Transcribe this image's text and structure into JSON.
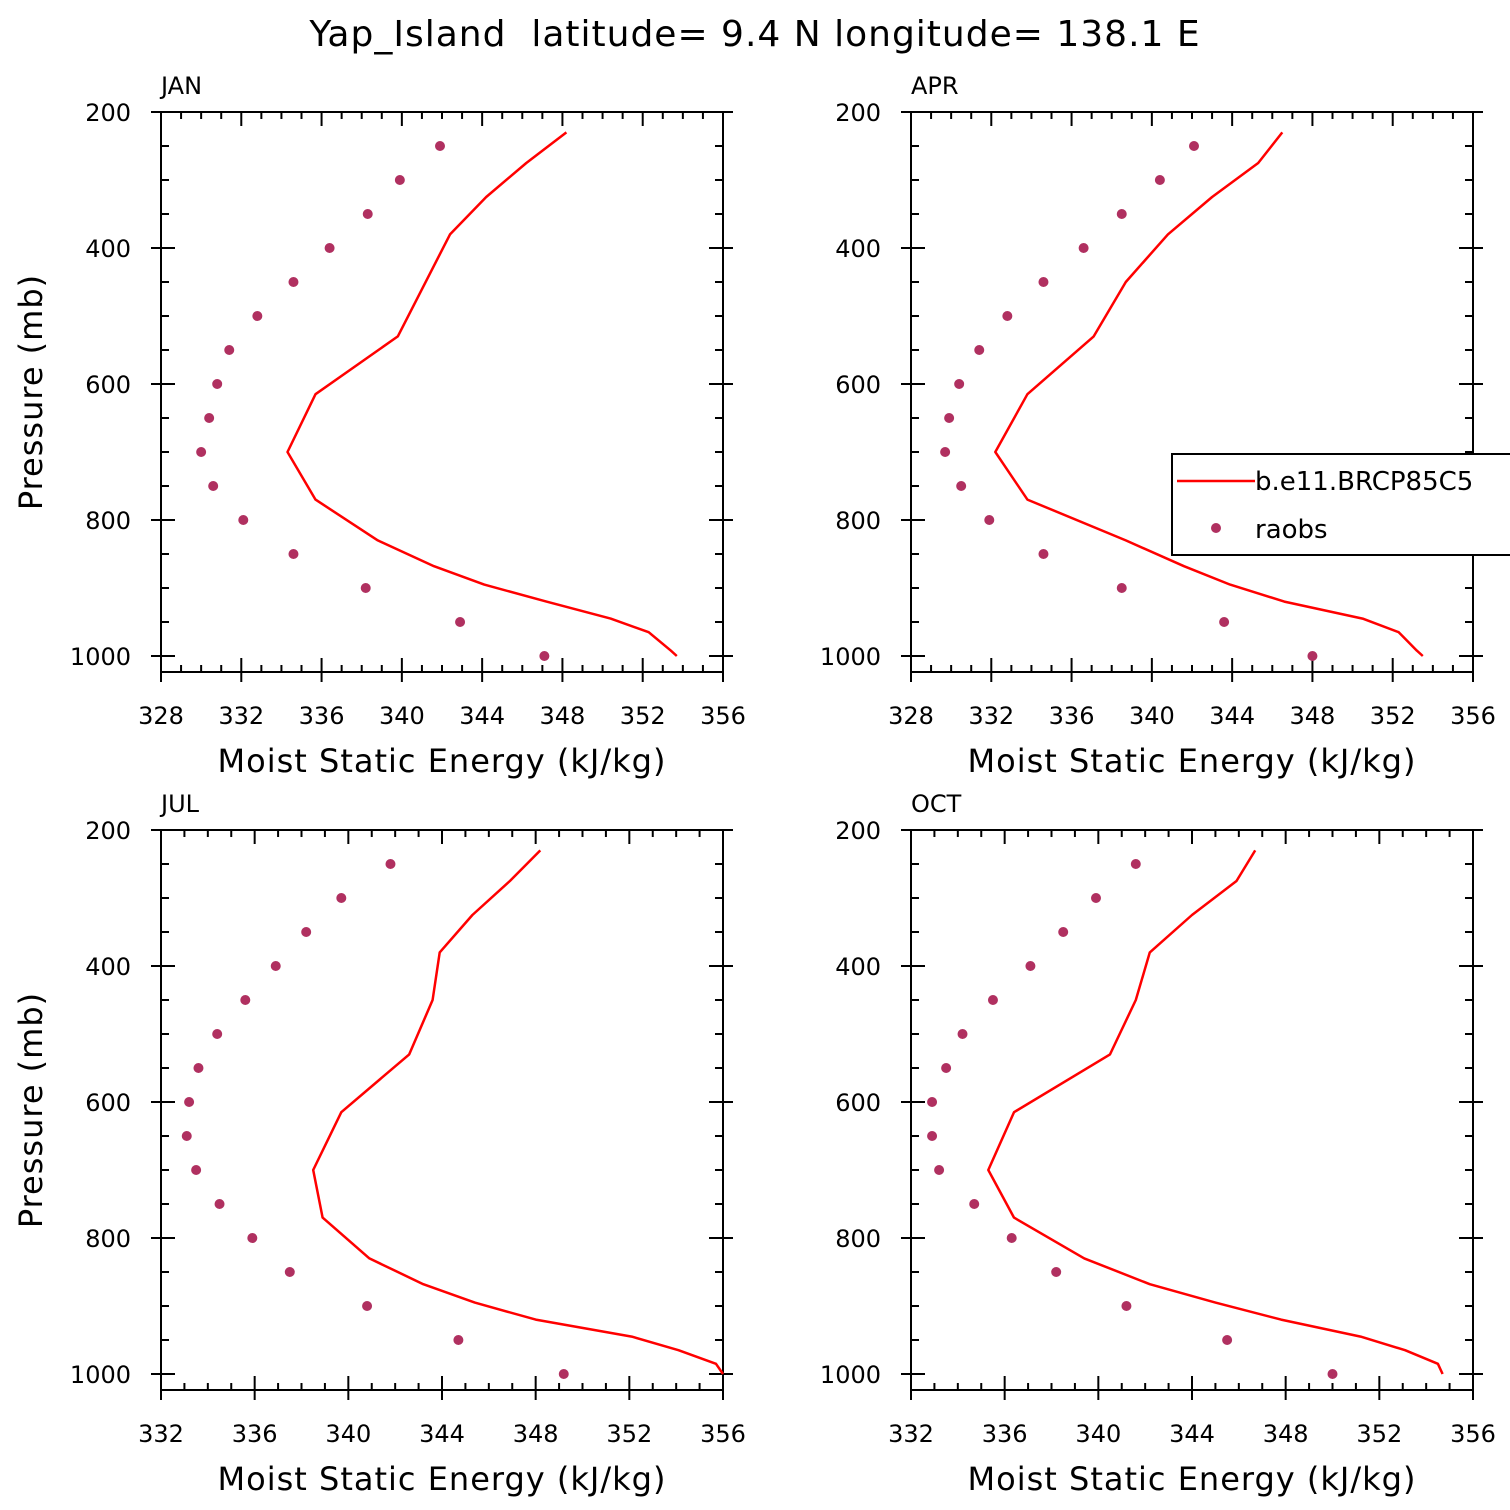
{
  "figure": {
    "title": "Yap_Island  latitude= 9.4 N longitude= 138.1 E"
  },
  "colors": {
    "model_line": "#ff0000",
    "raobs_marker": "#b03060",
    "axes": "#000000"
  },
  "legend": {
    "placement": "right-middle of APR panel",
    "entries": [
      {
        "label": "b.e11.BRCP85C5",
        "style": "line",
        "color": "#ff0000"
      },
      {
        "label": "raobs",
        "style": "marker",
        "color": "#b03060"
      }
    ]
  },
  "chart_data": [
    {
      "type": "line",
      "panel_label": "JAN",
      "xlabel": "Moist Static Energy (kJ/kg)",
      "ylabel": "Pressure (mb)",
      "xlim": [
        328,
        356
      ],
      "ylim": [
        1000,
        200
      ],
      "x_ticks": [
        328,
        332,
        336,
        340,
        344,
        348,
        352,
        356
      ],
      "y_ticks": [
        200,
        400,
        600,
        800,
        1000
      ],
      "series": [
        {
          "name": "b.e11.BRCP85C5",
          "style": "line",
          "pressure": [
            1000,
            992,
            965,
            945,
            920,
            895,
            868,
            830,
            770,
            700,
            615,
            530,
            380,
            325,
            275,
            230
          ],
          "mse": [
            353.7,
            353.4,
            352.3,
            350.4,
            347.2,
            344.1,
            341.6,
            338.8,
            335.7,
            334.3,
            335.7,
            339.8,
            342.4,
            344.2,
            346.2,
            348.2
          ]
        },
        {
          "name": "raobs",
          "style": "marker",
          "pressure": [
            1000,
            950,
            900,
            850,
            800,
            750,
            700,
            650,
            600,
            550,
            500,
            450,
            400,
            350,
            300,
            250
          ],
          "mse": [
            347.1,
            342.9,
            338.2,
            334.6,
            332.1,
            330.6,
            330.0,
            330.4,
            330.8,
            331.4,
            332.8,
            334.6,
            336.4,
            338.3,
            339.9,
            341.9
          ]
        }
      ]
    },
    {
      "type": "line",
      "panel_label": "APR",
      "xlabel": "Moist Static Energy (kJ/kg)",
      "ylabel": "",
      "xlim": [
        328,
        356
      ],
      "ylim": [
        1000,
        200
      ],
      "x_ticks": [
        328,
        332,
        336,
        340,
        344,
        348,
        352,
        356
      ],
      "y_ticks": [
        200,
        400,
        600,
        800,
        1000
      ],
      "series": [
        {
          "name": "b.e11.BRCP85C5",
          "style": "line",
          "pressure": [
            1000,
            992,
            965,
            945,
            920,
            895,
            868,
            830,
            770,
            700,
            615,
            530,
            450,
            380,
            325,
            275,
            230
          ],
          "mse": [
            353.5,
            353.2,
            352.3,
            350.5,
            346.6,
            343.9,
            341.6,
            338.7,
            333.8,
            332.2,
            333.8,
            337.1,
            338.7,
            340.8,
            343.0,
            345.3,
            346.5
          ]
        },
        {
          "name": "raobs",
          "style": "marker",
          "pressure": [
            1000,
            950,
            900,
            850,
            800,
            750,
            700,
            650,
            600,
            550,
            500,
            450,
            400,
            350,
            300,
            250
          ],
          "mse": [
            348.0,
            343.6,
            338.5,
            334.6,
            331.9,
            330.5,
            329.7,
            329.9,
            330.4,
            331.4,
            332.8,
            334.6,
            336.6,
            338.5,
            340.4,
            342.1
          ]
        }
      ]
    },
    {
      "type": "line",
      "panel_label": "JUL",
      "xlabel": "Moist Static Energy (kJ/kg)",
      "ylabel": "Pressure (mb)",
      "xlim": [
        332,
        356
      ],
      "ylim": [
        1000,
        200
      ],
      "x_ticks": [
        332,
        336,
        340,
        344,
        348,
        352,
        356
      ],
      "y_ticks": [
        200,
        400,
        600,
        800,
        1000
      ],
      "series": [
        {
          "name": "b.e11.BRCP85C5",
          "style": "line",
          "pressure": [
            1000,
            985,
            965,
            945,
            920,
            895,
            868,
            830,
            770,
            700,
            615,
            530,
            450,
            380,
            325,
            275,
            230
          ],
          "mse": [
            356.0,
            355.7,
            354.1,
            352.1,
            348.0,
            345.4,
            343.2,
            340.9,
            338.9,
            338.5,
            339.7,
            342.6,
            343.6,
            343.9,
            345.3,
            346.9,
            348.2
          ]
        },
        {
          "name": "raobs",
          "style": "marker",
          "pressure": [
            1000,
            950,
            900,
            850,
            800,
            750,
            700,
            650,
            600,
            550,
            500,
            450,
            400,
            350,
            300,
            250
          ],
          "mse": [
            349.2,
            344.7,
            340.8,
            337.5,
            335.9,
            334.5,
            333.5,
            333.1,
            333.2,
            333.6,
            334.4,
            335.6,
            336.9,
            338.2,
            339.7,
            341.8
          ]
        }
      ]
    },
    {
      "type": "line",
      "panel_label": "OCT",
      "xlabel": "Moist Static Energy (kJ/kg)",
      "ylabel": "",
      "xlim": [
        332,
        356
      ],
      "ylim": [
        1000,
        200
      ],
      "x_ticks": [
        332,
        336,
        340,
        344,
        348,
        352,
        356
      ],
      "y_ticks": [
        200,
        400,
        600,
        800,
        1000
      ],
      "series": [
        {
          "name": "b.e11.BRCP85C5",
          "style": "line",
          "pressure": [
            1000,
            985,
            965,
            945,
            920,
            895,
            868,
            830,
            770,
            700,
            615,
            530,
            450,
            380,
            325,
            275,
            230
          ],
          "mse": [
            354.7,
            354.5,
            353.1,
            351.2,
            347.8,
            345.0,
            342.2,
            339.4,
            336.4,
            335.3,
            336.4,
            340.5,
            341.6,
            342.2,
            344.0,
            345.9,
            346.7
          ]
        },
        {
          "name": "raobs",
          "style": "marker",
          "pressure": [
            1000,
            950,
            900,
            850,
            800,
            750,
            700,
            650,
            600,
            550,
            500,
            450,
            400,
            350,
            300,
            250
          ],
          "mse": [
            350.0,
            345.5,
            341.2,
            338.2,
            336.3,
            334.7,
            333.2,
            332.9,
            332.9,
            333.5,
            334.2,
            335.5,
            337.1,
            338.5,
            339.9,
            341.6
          ]
        }
      ]
    }
  ]
}
